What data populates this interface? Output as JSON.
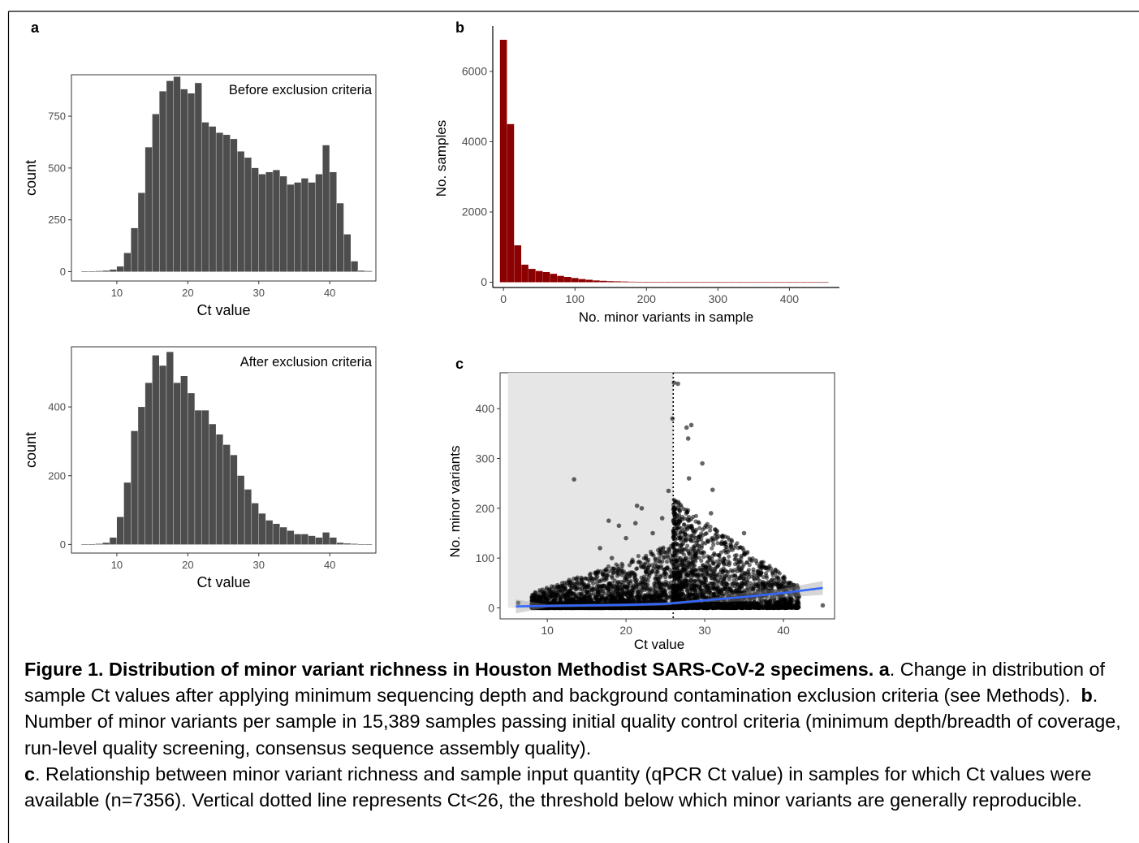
{
  "figure": {
    "panel_labels": {
      "a": "a",
      "b": "b",
      "c": "c"
    },
    "caption": {
      "title": "Figure 1. Distribution of minor variant richness in Houston Methodist SARS-CoV-2 specimens.",
      "a_label": "a",
      "a_text": ". Change in distribution of sample Ct values after applying minimum sequencing depth and background contamination exclusion criteria (see Methods).",
      "b_label": "b",
      "b_text": ". Number of minor variants per sample in 15,389 samples passing initial quality control criteria (minimum depth/breadth of coverage, run-level quality screening, consensus sequence assembly quality).",
      "c_label": "c",
      "c_text": ". Relationship between minor variant richness and sample input quantity (qPCR Ct value) in samples for which Ct values were available (n=7356). Vertical dotted line represents Ct<26, the threshold below which minor variants are generally reproducible."
    }
  },
  "colors": {
    "histogram_gray": "#4d4d4d",
    "histogram_red": "#8b0000",
    "smooth_line": "#3366ff",
    "shade": "#e6e6e6"
  },
  "chart_data": [
    {
      "type": "bar",
      "panel": "a",
      "annotation": "Before exclusion criteria",
      "xlabel": "Ct value",
      "ylabel": "count",
      "xlim": [
        3.6,
        46.5
      ],
      "ylim": [
        -45,
        950
      ],
      "xticks": [
        10,
        20,
        30,
        40
      ],
      "yticks": [
        0,
        250,
        500,
        750
      ],
      "bin_width": 1.0,
      "bin_starts": [
        5,
        6,
        7,
        8,
        9,
        10,
        11,
        12,
        13,
        14,
        15,
        16,
        17,
        18,
        19,
        20,
        21,
        22,
        23,
        24,
        25,
        26,
        27,
        28,
        29,
        30,
        31,
        32,
        33,
        34,
        35,
        36,
        37,
        38,
        39,
        40,
        41,
        42,
        43,
        44,
        45
      ],
      "values": [
        2,
        2,
        3,
        5,
        10,
        25,
        90,
        210,
        380,
        600,
        760,
        870,
        920,
        940,
        880,
        860,
        910,
        720,
        700,
        670,
        660,
        640,
        580,
        550,
        500,
        470,
        480,
        490,
        460,
        420,
        430,
        450,
        430,
        470,
        610,
        480,
        330,
        180,
        50,
        5,
        3
      ],
      "grid": false
    },
    {
      "type": "bar",
      "panel": "a",
      "annotation": "After exclusion criteria",
      "xlabel": "Ct value",
      "ylabel": "count",
      "xlim": [
        3.6,
        46.5
      ],
      "ylim": [
        -25,
        575
      ],
      "xticks": [
        10,
        20,
        30,
        40
      ],
      "yticks": [
        0,
        200,
        400
      ],
      "bin_width": 1.0,
      "bin_starts": [
        5,
        6,
        7,
        8,
        9,
        10,
        11,
        12,
        13,
        14,
        15,
        16,
        17,
        18,
        19,
        20,
        21,
        22,
        23,
        24,
        25,
        26,
        27,
        28,
        29,
        30,
        31,
        32,
        33,
        34,
        35,
        36,
        37,
        38,
        39,
        40,
        41,
        42,
        43,
        44,
        45
      ],
      "values": [
        1,
        1,
        2,
        5,
        20,
        80,
        180,
        330,
        400,
        470,
        550,
        520,
        560,
        470,
        490,
        440,
        390,
        390,
        350,
        320,
        290,
        260,
        200,
        160,
        120,
        90,
        70,
        60,
        50,
        40,
        30,
        30,
        25,
        20,
        35,
        20,
        5,
        3,
        2,
        1,
        1
      ],
      "grid": false
    },
    {
      "type": "bar",
      "panel": "b",
      "xlabel": "No. minor variants in sample",
      "ylabel": "No. samples",
      "xlim": [
        -15,
        470
      ],
      "ylim": [
        -150,
        7200
      ],
      "xticks": [
        0,
        100,
        200,
        300,
        400
      ],
      "yticks": [
        0,
        2000,
        4000,
        6000
      ],
      "bin_width": 10,
      "bin_starts": [
        -5,
        5,
        15,
        25,
        35,
        45,
        55,
        65,
        75,
        85,
        95,
        105,
        115,
        125,
        135,
        145,
        155,
        165,
        175,
        185,
        195,
        205,
        215,
        225,
        235,
        245,
        255,
        265,
        275,
        285,
        295,
        305,
        315,
        325,
        335,
        345,
        355,
        365,
        375,
        385,
        395,
        405,
        415,
        425,
        435,
        445
      ],
      "values": [
        6900,
        4500,
        1050,
        500,
        380,
        320,
        290,
        240,
        180,
        150,
        120,
        90,
        70,
        50,
        40,
        30,
        25,
        20,
        15,
        12,
        10,
        8,
        7,
        6,
        5,
        5,
        4,
        4,
        3,
        3,
        2,
        2,
        2,
        2,
        1,
        1,
        1,
        1,
        1,
        1,
        1,
        1,
        1,
        1,
        1,
        1
      ],
      "grid": false
    },
    {
      "type": "scatter",
      "panel": "c",
      "xlabel": "Ct value",
      "ylabel": "No. minor variants",
      "xlim": [
        4,
        46.5
      ],
      "ylim": [
        -22,
        472
      ],
      "xticks": [
        10,
        20,
        30,
        40
      ],
      "yticks": [
        0,
        100,
        200,
        300,
        400
      ],
      "threshold_line_x": 26,
      "shaded_region_x": [
        5,
        26
      ],
      "outliers": [
        [
          13.4,
          258
        ],
        [
          26.1,
          452
        ],
        [
          26.6,
          450
        ],
        [
          25.9,
          380
        ],
        [
          28.3,
          367
        ],
        [
          27.7,
          362
        ],
        [
          27.9,
          340
        ],
        [
          29.7,
          290
        ],
        [
          31.0,
          237
        ],
        [
          28.0,
          260
        ],
        [
          25.4,
          235
        ],
        [
          21.4,
          205
        ],
        [
          17.8,
          175
        ],
        [
          19.1,
          165
        ],
        [
          21.2,
          170
        ],
        [
          22.0,
          200
        ],
        [
          16.7,
          120
        ],
        [
          20.0,
          140
        ],
        [
          35.0,
          150
        ],
        [
          34.8,
          120
        ],
        [
          36.5,
          95
        ],
        [
          37.8,
          80
        ],
        [
          39.0,
          75
        ],
        [
          40.0,
          60
        ],
        [
          45.0,
          5
        ],
        [
          6.3,
          10
        ],
        [
          18.2,
          100
        ],
        [
          23.4,
          150
        ],
        [
          24.6,
          180
        ],
        [
          30.8,
          190
        ],
        [
          32.5,
          130
        ],
        [
          38.4,
          40
        ]
      ],
      "trend": {
        "x": [
          6,
          10,
          15,
          20,
          25,
          30,
          35,
          40,
          45
        ],
        "y": [
          3,
          4,
          5,
          6,
          8,
          15,
          22,
          30,
          40
        ]
      },
      "grid": false
    }
  ]
}
